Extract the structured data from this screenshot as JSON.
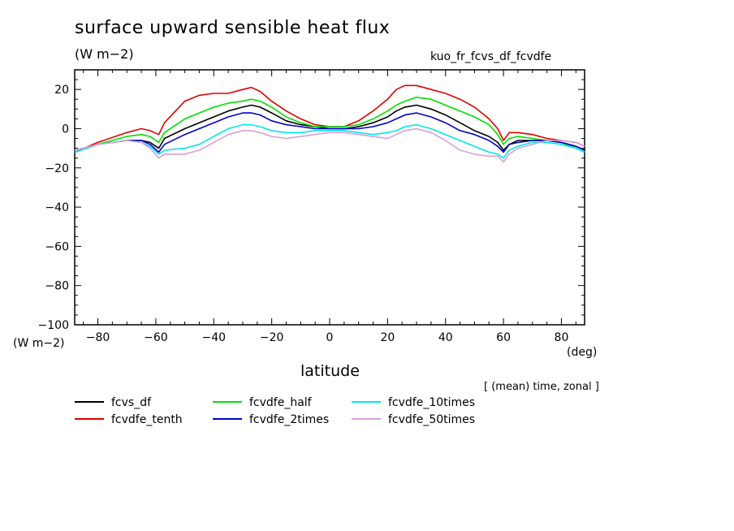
{
  "figure": {
    "title": "surface upward sensible heat flux",
    "subtitle": "(W m−2)",
    "run_name": "kuo_fr_fcvs_df_fcvdfe",
    "y_units_label": "(W m−2)",
    "x_units_label": "(deg)",
    "note": "[ (mean) time, zonal ]"
  },
  "chart_data": {
    "type": "line",
    "title": "surface upward sensible heat flux",
    "xlabel": "latitude",
    "ylabel": "(W m−2)",
    "xlim": [
      -88,
      88
    ],
    "ylim": [
      -100,
      30
    ],
    "x_ticks": [
      -80,
      -60,
      -40,
      -20,
      0,
      20,
      40,
      60,
      80
    ],
    "x_tick_labels": [
      "−80",
      "−60",
      "−40",
      "−20",
      "0",
      "20",
      "40",
      "60",
      "80"
    ],
    "y_ticks": [
      20,
      0,
      -20,
      -40,
      -60,
      -80,
      -100
    ],
    "y_tick_labels": [
      "20",
      "0",
      "−20",
      "−40",
      "−60",
      "−80",
      "−100"
    ],
    "grid": false,
    "legend_position": "bottom",
    "x": [
      -88,
      -80,
      -70,
      -65,
      -62,
      -59,
      -57,
      -50,
      -45,
      -40,
      -35,
      -30,
      -27,
      -24,
      -20,
      -15,
      -10,
      -5,
      0,
      5,
      10,
      15,
      20,
      23,
      26,
      30,
      35,
      40,
      45,
      50,
      55,
      58,
      60,
      62,
      65,
      70,
      75,
      80,
      85,
      88
    ],
    "series": [
      {
        "name": "fcvs_df",
        "color": "#000000",
        "values": [
          -12,
          -8,
          -6,
          -6,
          -7,
          -10,
          -5,
          0,
          3,
          6,
          9,
          11,
          12,
          11,
          8,
          4,
          2,
          1,
          0,
          0,
          1,
          3,
          6,
          9,
          11,
          12,
          10,
          7,
          3,
          -1,
          -4,
          -7,
          -11,
          -8,
          -6,
          -6,
          -6,
          -7,
          -9,
          -11
        ]
      },
      {
        "name": "fcvdfe_tenth",
        "color": "#e00000",
        "values": [
          -12,
          -7,
          -2,
          0,
          -1,
          -3,
          3,
          14,
          17,
          18,
          18,
          20,
          21,
          19,
          14,
          9,
          5,
          2,
          1,
          1,
          4,
          9,
          15,
          20,
          22,
          22,
          20,
          18,
          15,
          11,
          5,
          0,
          -6,
          -2,
          -2,
          -3,
          -5,
          -6,
          -7,
          -9
        ]
      },
      {
        "name": "fcvdfe_half",
        "color": "#00e000",
        "values": [
          -12,
          -8,
          -4,
          -3,
          -4,
          -7,
          -2,
          5,
          8,
          11,
          13,
          14,
          15,
          14,
          11,
          6,
          3,
          1,
          1,
          1,
          2,
          5,
          9,
          12,
          14,
          16,
          15,
          12,
          9,
          6,
          2,
          -3,
          -8,
          -5,
          -4,
          -5,
          -6,
          -7,
          -10,
          -12
        ]
      },
      {
        "name": "fcvdfe_2times",
        "color": "#0000cc",
        "values": [
          -12,
          -8,
          -6,
          -6,
          -8,
          -12,
          -8,
          -3,
          0,
          3,
          6,
          8,
          8,
          7,
          4,
          2,
          1,
          0,
          0,
          0,
          0,
          1,
          3,
          5,
          7,
          8,
          6,
          3,
          -1,
          -3,
          -6,
          -9,
          -12,
          -8,
          -7,
          -6,
          -6,
          -7,
          -9,
          -11
        ]
      },
      {
        "name": "fcvdfe_10times",
        "color": "#00e8e8",
        "values": [
          -12,
          -8,
          -6,
          -7,
          -9,
          -13,
          -11,
          -10,
          -8,
          -4,
          0,
          2,
          2,
          1,
          -1,
          -2,
          -2,
          -1,
          -1,
          -1,
          -2,
          -3,
          -2,
          -1,
          1,
          2,
          0,
          -3,
          -6,
          -9,
          -12,
          -13,
          -15,
          -11,
          -9,
          -7,
          -7,
          -8,
          -10,
          -12
        ]
      },
      {
        "name": "fcvdfe_50times",
        "color": "#d8a0d8",
        "values": [
          -11,
          -8,
          -6,
          -7,
          -10,
          -15,
          -13,
          -13,
          -11,
          -7,
          -3,
          -1,
          -1,
          -2,
          -4,
          -5,
          -4,
          -3,
          -2,
          -2,
          -3,
          -4,
          -5,
          -3,
          -1,
          0,
          -2,
          -6,
          -11,
          -13,
          -14,
          -14,
          -17,
          -13,
          -10,
          -8,
          -6,
          -6,
          -7,
          -9
        ]
      }
    ]
  }
}
